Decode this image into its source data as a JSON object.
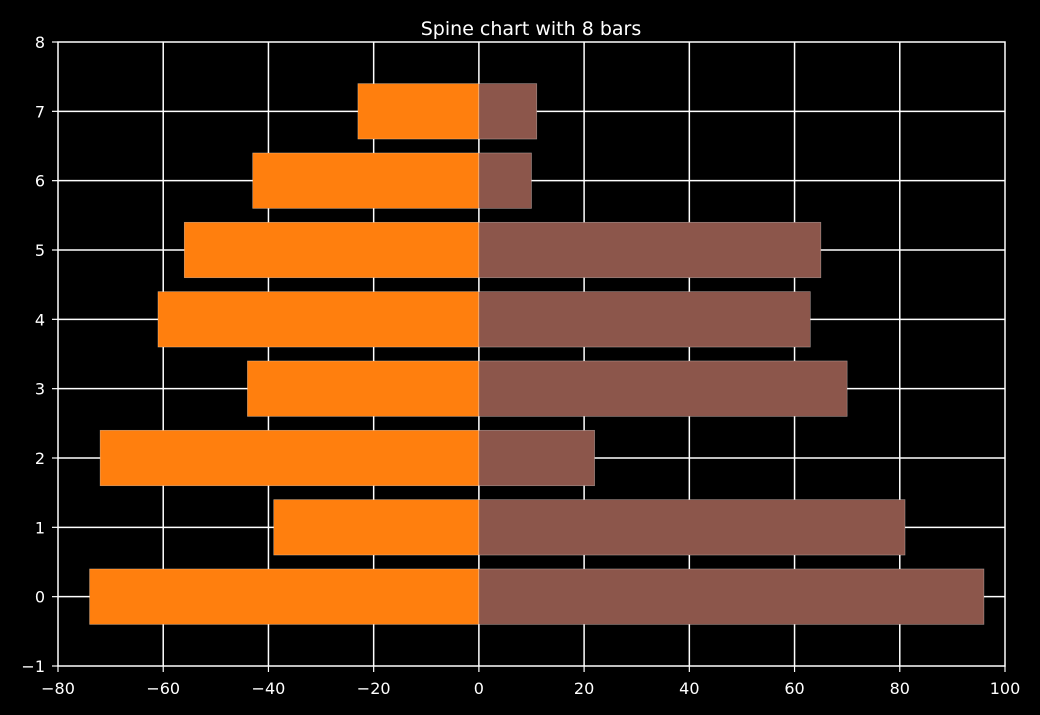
{
  "chart_data": {
    "type": "bar",
    "orientation": "horizontal",
    "title": "Spine chart with 8 bars",
    "xlabel": "",
    "ylabel": "",
    "xlim": [
      -80,
      100
    ],
    "ylim": [
      -1,
      8
    ],
    "x_ticks": [
      -80,
      -60,
      -40,
      -20,
      0,
      20,
      40,
      60,
      80,
      100
    ],
    "x_tick_labels": [
      "−80",
      "−60",
      "−40",
      "−20",
      "0",
      "20",
      "40",
      "60",
      "80",
      "100"
    ],
    "y_ticks": [
      -1,
      0,
      1,
      2,
      3,
      4,
      5,
      6,
      7,
      8
    ],
    "y_tick_labels": [
      "−1",
      "0",
      "1",
      "2",
      "3",
      "4",
      "5",
      "6",
      "7",
      "8"
    ],
    "categories": [
      0,
      1,
      2,
      3,
      4,
      5,
      6,
      7
    ],
    "grid": true,
    "background": "#000000",
    "foreground": "#ffffff",
    "series": [
      {
        "color": "#ff7f0e",
        "values": [
          -74,
          -39,
          -72,
          -44,
          -61,
          -56,
          -43,
          -23
        ]
      },
      {
        "color": "#8c564b",
        "values": [
          96,
          81,
          22,
          70,
          63,
          65,
          10,
          11
        ]
      }
    ]
  }
}
